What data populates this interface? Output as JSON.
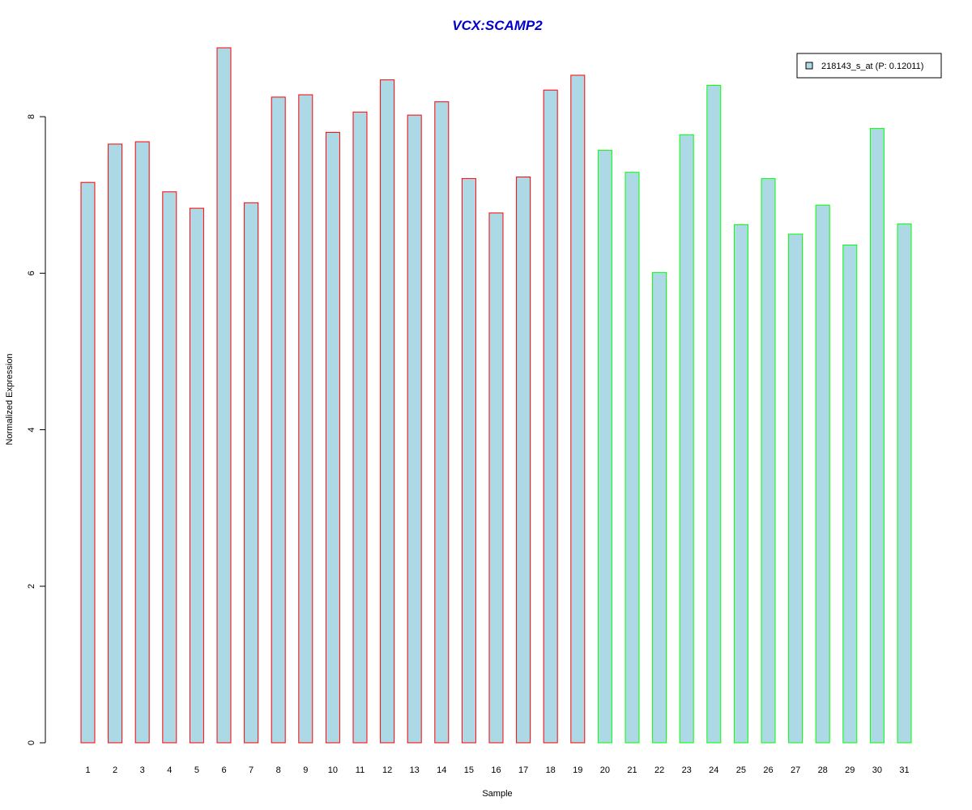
{
  "chart_data": {
    "type": "bar",
    "title": "VCX:SCAMP2",
    "xlabel": "Sample",
    "ylabel": "Normalized Expression",
    "ylim": [
      0,
      8.87
    ],
    "yticks": [
      0,
      2,
      4,
      6,
      8
    ],
    "categories": [
      "1",
      "2",
      "3",
      "4",
      "5",
      "6",
      "7",
      "8",
      "9",
      "10",
      "11",
      "12",
      "13",
      "14",
      "15",
      "16",
      "17",
      "18",
      "19",
      "20",
      "21",
      "22",
      "23",
      "24",
      "25",
      "26",
      "27",
      "28",
      "29",
      "30",
      "31"
    ],
    "series": [
      {
        "name": "218143_s_at (P: 0.12011)",
        "values": [
          7.16,
          7.65,
          7.68,
          7.04,
          6.83,
          8.88,
          6.9,
          8.25,
          8.28,
          7.8,
          8.06,
          8.47,
          8.02,
          8.19,
          7.21,
          6.77,
          7.23,
          8.34,
          8.53,
          7.57,
          7.29,
          6.01,
          7.77,
          8.4,
          6.62,
          7.21,
          6.5,
          6.87,
          6.36,
          7.85,
          6.63
        ],
        "fill": "#add8e6"
      }
    ],
    "groups": [
      {
        "samples": [
          1,
          19
        ],
        "border_color": "#ff0000"
      },
      {
        "samples": [
          20,
          31
        ],
        "border_color": "#00ff00"
      }
    ],
    "title_color": "#0000cd",
    "legend_position": "top-right",
    "grid": false
  }
}
